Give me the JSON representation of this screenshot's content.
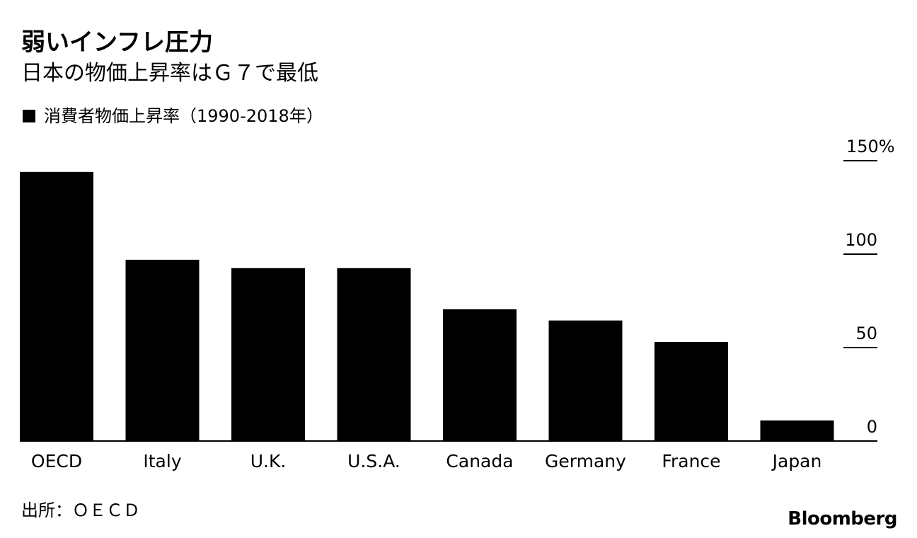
{
  "chart_data": {
    "type": "bar",
    "title": "弱いインフレ圧力",
    "subtitle": "日本の物価上昇率はＧ７で最低",
    "legend": "消費者物価上昇率（1990-2018年）",
    "categories": [
      "OECD",
      "Italy",
      "U.K.",
      "U.S.A.",
      "Canada",
      "Germany",
      "France",
      "Japan"
    ],
    "series": [
      {
        "name": "消費者物価上昇率（1990-2018年）",
        "values": [
          144,
          97,
          92.5,
          92.5,
          70.5,
          64.5,
          53,
          11
        ],
        "color": "#000000"
      }
    ],
    "ylim": [
      0,
      150
    ],
    "yticks": [
      0,
      50,
      100,
      150
    ],
    "ytick_labels": [
      "0",
      "50",
      "100",
      "150%"
    ],
    "y_axis_position": "right",
    "xlabel": "",
    "ylabel": ""
  },
  "source": "出所：ＯＥＣＤ",
  "brand": "Bloomberg"
}
